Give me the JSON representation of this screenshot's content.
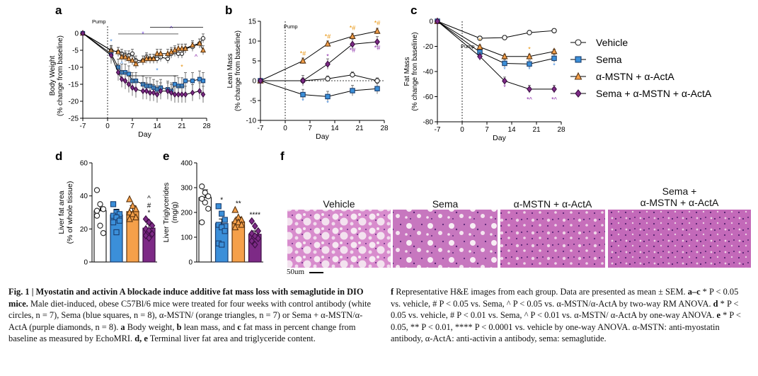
{
  "figure": {
    "panel_letters": [
      "a",
      "b",
      "c",
      "d",
      "e",
      "f"
    ],
    "pump_label": "Pump",
    "legend": [
      {
        "label": "Vehicle",
        "marker": "circle",
        "fill": "#ffffff",
        "stroke": "#222222"
      },
      {
        "label": "Sema",
        "marker": "square",
        "fill": "#3b8fd9",
        "stroke": "#1a3f70"
      },
      {
        "label": "α-MSTN + α-ActA",
        "marker": "triangle",
        "fill": "#f5a04a",
        "stroke": "#5a3410"
      },
      {
        "label": "Sema + α-MSTN + α-ActA",
        "marker": "diamond",
        "fill": "#7d2a86",
        "stroke": "#3d0f44"
      }
    ],
    "colors": {
      "vehicle": "#ffffff",
      "sema": "#3b8fd9",
      "mstn": "#f5a04a",
      "combo": "#7d2a86",
      "sig_vehicle": "#7a4ce0",
      "sig_sema": "#e8930c",
      "sig_blue": "#4a8fe0",
      "sig_purple": "#8a2aa8"
    },
    "histology": {
      "labels": [
        "Vehicle",
        "Sema",
        "α-MSTN + α-ActA",
        "Sema + α-MSTN + α-ActA"
      ],
      "scale_bar": "50um"
    }
  },
  "chart_data": [
    {
      "panel": "a",
      "type": "line",
      "xlabel": "Day",
      "ylabel": "Body Weight (% change from baseline)",
      "xlim": [
        -7,
        28
      ],
      "ylim": [
        -25,
        0
      ],
      "xticks": [
        -7,
        0,
        7,
        14,
        21,
        28
      ],
      "yticks": [
        0,
        -5,
        -10,
        -15,
        -20,
        -25
      ],
      "pump_day": 0,
      "series": [
        {
          "name": "Vehicle",
          "x": [
            -7,
            1,
            3,
            4,
            5,
            6,
            7,
            8,
            10,
            11,
            12,
            13,
            14,
            15,
            17,
            18,
            19,
            20,
            21,
            22,
            24,
            26,
            27
          ],
          "y": [
            0,
            -5,
            -5.5,
            -6,
            -6.5,
            -6.5,
            -6,
            -8,
            -8,
            -7,
            -7.5,
            -7.5,
            -7.5,
            -7,
            -7.5,
            -6,
            -5.5,
            -6,
            -6,
            -4.5,
            -4,
            -3,
            -1.5
          ]
        },
        {
          "name": "Sema",
          "x": [
            -7,
            1,
            3,
            4,
            5,
            6,
            7,
            8,
            10,
            11,
            12,
            13,
            14,
            15,
            17,
            18,
            19,
            20,
            21,
            22,
            24,
            26,
            27
          ],
          "y": [
            0,
            -6,
            -10,
            -11.5,
            -11.5,
            -12,
            -14,
            -14,
            -15,
            -15.5,
            -15.5,
            -16,
            -16.5,
            -16,
            -16.5,
            -17,
            -15,
            -15.5,
            -15.5,
            -14,
            -14,
            -13.5,
            -14
          ]
        },
        {
          "name": "α-MSTN + α-ActA",
          "x": [
            -7,
            1,
            3,
            4,
            5,
            6,
            7,
            8,
            10,
            11,
            12,
            13,
            14,
            15,
            17,
            18,
            19,
            20,
            21,
            22,
            24,
            26,
            27
          ],
          "y": [
            0,
            -5,
            -5.5,
            -7,
            -7,
            -7.5,
            -8,
            -9,
            -8,
            -7.5,
            -7.5,
            -7.5,
            -6,
            -6,
            -6,
            -5.5,
            -5,
            -4.5,
            -4.5,
            -4.5,
            -3.5,
            -3,
            -5
          ]
        },
        {
          "name": "Sema + α-MSTN + α-ActA",
          "x": [
            -7,
            1,
            3,
            4,
            5,
            6,
            7,
            8,
            10,
            11,
            12,
            13,
            14,
            15,
            17,
            18,
            19,
            20,
            21,
            22,
            24,
            26,
            27
          ],
          "y": [
            0,
            -6.5,
            -11.5,
            -13.5,
            -14,
            -15,
            -16,
            -16.5,
            -17,
            -17,
            -17.5,
            -17.5,
            -18,
            -17,
            -17,
            -17.5,
            -18,
            -18,
            -18,
            -18,
            -17.5,
            -17,
            -18
          ]
        }
      ],
      "annotations": [
        "*",
        "*",
        "^",
        "^",
        "*",
        "*",
        "^"
      ]
    },
    {
      "panel": "b",
      "type": "line",
      "xlabel": "Day",
      "ylabel": "Lean Mass (% change from baseline)",
      "xlim": [
        -7,
        28
      ],
      "ylim": [
        -10,
        15
      ],
      "xticks": [
        -7,
        0,
        7,
        14,
        21,
        28
      ],
      "yticks": [
        15,
        10,
        5,
        0,
        -5,
        -10
      ],
      "pump_day": 0,
      "series": [
        {
          "name": "Vehicle",
          "x": [
            -7,
            5,
            12,
            19,
            26
          ],
          "y": [
            0,
            0,
            0.5,
            1.5,
            0
          ]
        },
        {
          "name": "Sema",
          "x": [
            -7,
            5,
            12,
            19,
            26
          ],
          "y": [
            0,
            -3.5,
            -4,
            -2.5,
            -2
          ]
        },
        {
          "name": "α-MSTN + α-ActA",
          "x": [
            -7,
            5,
            12,
            19,
            26
          ],
          "y": [
            0,
            5,
            9.3,
            11.2,
            12.5
          ]
        },
        {
          "name": "Sema + α-MSTN + α-ActA",
          "x": [
            -7,
            5,
            12,
            19,
            26
          ],
          "y": [
            0,
            0,
            4.2,
            9.2,
            9.8
          ]
        }
      ],
      "annotations": [
        "*#",
        "*#",
        "*#",
        "*#",
        "*",
        "*#",
        "*#",
        "*",
        "*"
      ]
    },
    {
      "panel": "c",
      "type": "line",
      "xlabel": "Day",
      "ylabel": "Fat Mass (% change fron baseline)",
      "xlim": [
        -7,
        28
      ],
      "ylim": [
        -80,
        0
      ],
      "xticks": [
        -7,
        0,
        7,
        14,
        21,
        28
      ],
      "yticks": [
        0,
        -20,
        -40,
        -60,
        -80
      ],
      "pump_day": 0,
      "series": [
        {
          "name": "Vehicle",
          "x": [
            -7,
            5,
            12,
            19,
            26
          ],
          "y": [
            0,
            -13.5,
            -13,
            -9,
            -7.5
          ]
        },
        {
          "name": "Sema",
          "x": [
            -7,
            5,
            12,
            19,
            26
          ],
          "y": [
            0,
            -24.5,
            -33.5,
            -34,
            -29.5
          ]
        },
        {
          "name": "α-MSTN + α-ActA",
          "x": [
            -7,
            5,
            12,
            19,
            26
          ],
          "y": [
            0,
            -20.5,
            -28,
            -28,
            -24
          ]
        },
        {
          "name": "Sema + α-MSTN + α-ActA",
          "x": [
            -7,
            5,
            12,
            19,
            26
          ],
          "y": [
            0,
            -28,
            -47.5,
            -54,
            -54
          ]
        }
      ],
      "annotations": [
        "*",
        "*",
        "*",
        "*",
        "*",
        "*",
        "*",
        "*^",
        "*^"
      ]
    },
    {
      "panel": "d",
      "type": "bar",
      "ylabel": "Liver fat area (% of whole tissue)",
      "ylim": [
        0,
        60
      ],
      "yticks": [
        0,
        20,
        40,
        60
      ],
      "categories": [
        "Vehicle",
        "Sema",
        "α-MSTN + α-ActA",
        "Sema + α-MSTN + α-ActA"
      ],
      "values": [
        31,
        28.5,
        30.5,
        20.5
      ],
      "points": [
        [
          43.5,
          35,
          32,
          28,
          22,
          17.5,
          31
        ],
        [
          35,
          30,
          29,
          28,
          27,
          25,
          24,
          18
        ],
        [
          38,
          34,
          32,
          30,
          29,
          27,
          26
        ],
        [
          26,
          24,
          22,
          20,
          19,
          17,
          16,
          14.5
        ]
      ],
      "annotations": [
        "",
        "",
        "",
        "^\n#\n*"
      ]
    },
    {
      "panel": "e",
      "type": "bar",
      "ylabel": "Liver Triglycerides (mg/g)",
      "ylim": [
        0,
        400
      ],
      "yticks": [
        0,
        100,
        200,
        300,
        400
      ],
      "categories": [
        "Vehicle",
        "Sema",
        "α-MSTN + α-ActA",
        "Sema + α-MSTN + α-ActA"
      ],
      "values": [
        260,
        155,
        162,
        112
      ],
      "points": [
        [
          305,
          280,
          265,
          255,
          240,
          215,
          160
        ],
        [
          225,
          195,
          170,
          150,
          140,
          125,
          75,
          70
        ],
        [
          210,
          180,
          170,
          165,
          160,
          150,
          140
        ],
        [
          165,
          145,
          125,
          115,
          105,
          95,
          85,
          70
        ]
      ],
      "annotations": [
        "",
        "*",
        "**",
        "****"
      ]
    }
  ],
  "caption": {
    "left": [
      {
        "b": "Fig. 1 | Myostatin and activin A blockade induce additive fat mass loss with semaglutide in DIO mice.",
        "t": " Male diet-induced, obese C57Bl/6 mice were treated for four weeks with control antibody (white circles, "
      },
      {
        "t": "n = 7), Sema (blue squares, n = 8), α-MSTN/ (orange triangles, n = 7) or Sema + α-MSTN/α-ActA (purple diamonds, n = 8). "
      },
      {
        "b": "a",
        "t": " Body weight, "
      },
      {
        "b": "b",
        "t": " lean mass, and "
      },
      {
        "b": "c",
        "t": " fat mass in percent change from baseline as measured by EchoMRI. "
      },
      {
        "b": "d, e",
        "t": " Terminal liver fat area and triglyceride content."
      }
    ],
    "right": [
      {
        "b": "f",
        "t": " Representative H&E images from each group. Data are presented as mean ± SEM. "
      },
      {
        "b": "a–c",
        "t": " * P < 0.05 vs. vehicle, # P < 0.05 vs. Sema, ^ P < 0.05 vs. α-MSTN/α-ActA by two-way RM ANOVA. "
      },
      {
        "b": "d",
        "t": " * P < 0.05 vs. vehicle, # P < 0.01 vs. Sema, ^ P < 0.01 vs. α-MSTN/ α-ActA by one-way ANOVA. "
      },
      {
        "b": "e",
        "t": " * P < 0.05, ** P < 0.01, **** P < 0.0001 vs. vehicle by one-way ANOVA. α-MSTN: anti-myostatin antibody, α-ActA: anti-activin a antibody, sema: semaglutide."
      }
    ]
  }
}
